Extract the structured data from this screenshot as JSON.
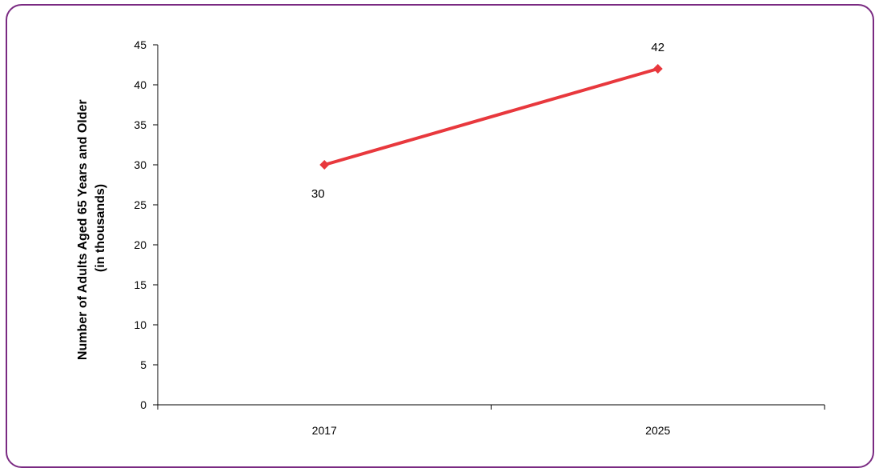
{
  "chart_data": {
    "type": "line",
    "title": "",
    "xlabel": "",
    "ylabel_lines": [
      "Number of Adults Aged 65 Years and Older",
      "(in thousands)"
    ],
    "categories": [
      "2017",
      "2025"
    ],
    "series": [
      {
        "values": [
          30,
          42
        ],
        "data_labels": [
          "30",
          "42"
        ],
        "color": "#e8383d",
        "marker": "diamond"
      }
    ],
    "ylim": [
      0,
      45
    ],
    "yticks": [
      0,
      5,
      10,
      15,
      20,
      25,
      30,
      35,
      40,
      45
    ],
    "ytick_labels": [
      "0",
      "5",
      "10",
      "15",
      "20",
      "25",
      "30",
      "35",
      "40",
      "45"
    ],
    "grid": false,
    "legend": "none"
  },
  "colors": {
    "frame_border": "#7a2a82",
    "axis": "#000000"
  }
}
